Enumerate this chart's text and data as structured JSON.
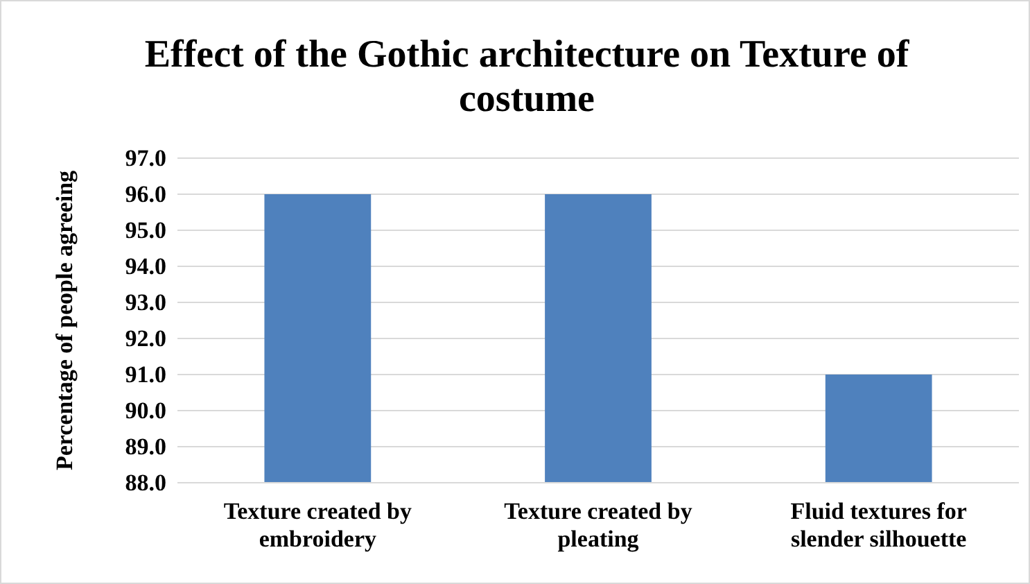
{
  "chart_data": {
    "type": "bar",
    "title": "Effect of the Gothic architecture on Texture of costume",
    "ylabel": "Percentage of people agreeing",
    "categories": [
      "Texture created by embroidery",
      "Texture created by pleating",
      "Fluid textures for slender silhouette"
    ],
    "values": [
      96,
      96,
      91
    ],
    "color": "#4f81bd",
    "ylim": [
      88,
      97
    ],
    "yticks": [
      {
        "value": 88,
        "label": "88.0"
      },
      {
        "value": 89,
        "label": "89.0"
      },
      {
        "value": 90,
        "label": "90.0"
      },
      {
        "value": 91,
        "label": "91.0"
      },
      {
        "value": 92,
        "label": "92.0"
      },
      {
        "value": 93,
        "label": "93.0"
      },
      {
        "value": 94,
        "label": "94.0"
      },
      {
        "value": 95,
        "label": "95.0"
      },
      {
        "value": 96,
        "label": "96.0"
      },
      {
        "value": 97,
        "label": "97.0"
      }
    ],
    "grid": "y"
  }
}
